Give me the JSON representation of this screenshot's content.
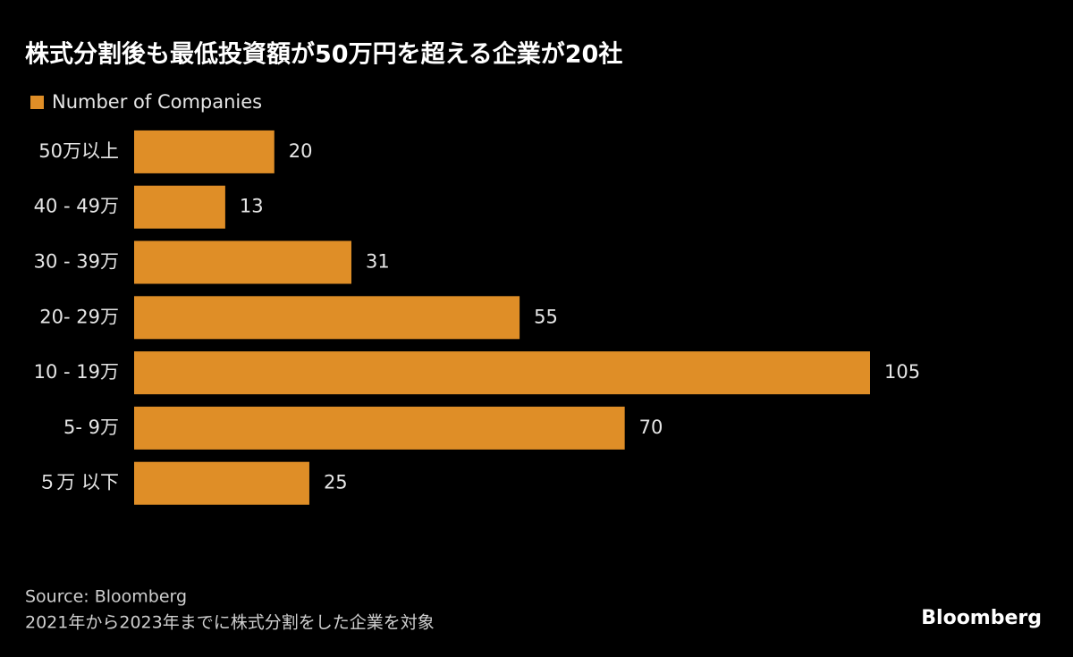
{
  "chart_data": {
    "type": "bar",
    "orientation": "horizontal",
    "title": "株式分割後も最低投資額が50万円を超える企業が20社",
    "categories": [
      "50万以上",
      "40 - 49万",
      "30 - 39万",
      "20- 29万",
      "10 - 19万",
      "5- 9万",
      "５万 以下"
    ],
    "series": [
      {
        "name": "Number of Companies",
        "color": "#df8e27",
        "values": [
          20,
          13,
          31,
          55,
          105,
          70,
          25
        ]
      }
    ],
    "source": "Source: Bloomberg",
    "note": "2021年から2023年までに株式分割をした企業を対象"
  },
  "logo": "Bloomberg"
}
